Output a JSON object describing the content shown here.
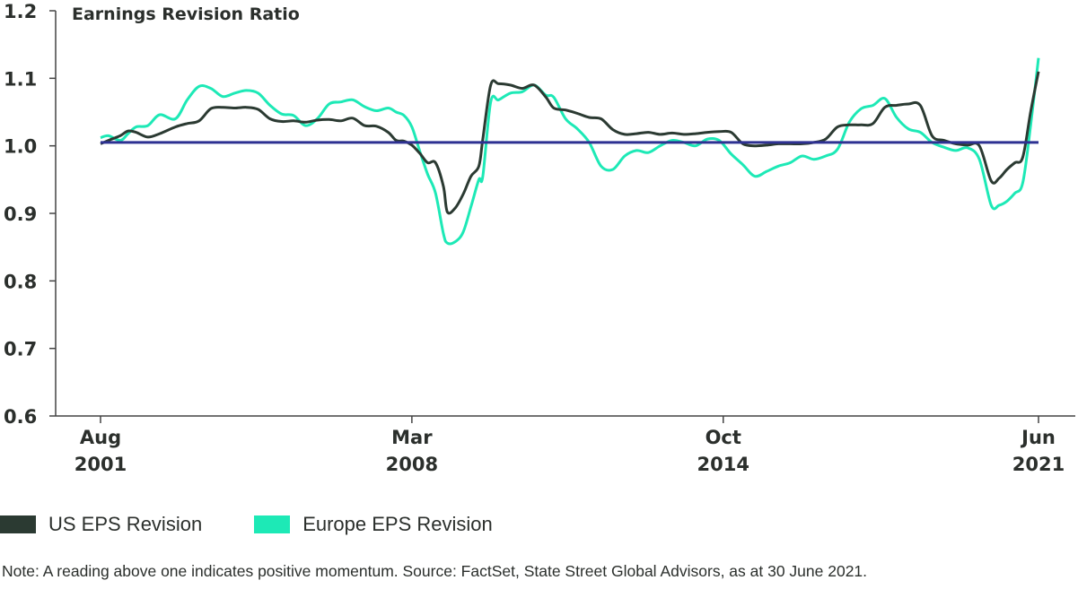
{
  "chart_data": {
    "type": "line",
    "title": "",
    "ylabel": "Earnings Revision Ratio",
    "xlabel": "",
    "ylim": [
      0.6,
      1.2
    ],
    "yticks": [
      "0.6",
      "0.7",
      "0.8",
      "0.9",
      "1.0",
      "1.1",
      "1.2"
    ],
    "xlim": [
      "2001-08",
      "2021-06"
    ],
    "xticks": [
      {
        "date": "2001-08",
        "month": "Aug",
        "year": "2001"
      },
      {
        "date": "2008-03",
        "month": "Mar",
        "year": "2008"
      },
      {
        "date": "2014-10",
        "month": "Oct",
        "year": "2014"
      },
      {
        "date": "2021-06",
        "month": "Jun",
        "year": "2021"
      }
    ],
    "grid": false,
    "legend_position": "bottom-left",
    "reference_line": {
      "y": 1.005,
      "color": "#2e3192"
    },
    "series": [
      {
        "name": "US EPS Revision",
        "color": "#2b3a32",
        "points": [
          [
            "2001-08",
            1.003
          ],
          [
            "2001-10",
            1.008
          ],
          [
            "2002-01",
            1.015
          ],
          [
            "2002-03",
            1.022
          ],
          [
            "2002-05",
            1.02
          ],
          [
            "2002-08",
            1.013
          ],
          [
            "2002-11",
            1.018
          ],
          [
            "2003-03",
            1.028
          ],
          [
            "2003-06",
            1.033
          ],
          [
            "2003-09",
            1.037
          ],
          [
            "2003-12",
            1.055
          ],
          [
            "2004-03",
            1.057
          ],
          [
            "2004-06",
            1.056
          ],
          [
            "2004-09",
            1.057
          ],
          [
            "2004-12",
            1.054
          ],
          [
            "2005-03",
            1.04
          ],
          [
            "2005-06",
            1.036
          ],
          [
            "2005-09",
            1.037
          ],
          [
            "2005-12",
            1.035
          ],
          [
            "2006-03",
            1.038
          ],
          [
            "2006-06",
            1.039
          ],
          [
            "2006-09",
            1.037
          ],
          [
            "2006-12",
            1.041
          ],
          [
            "2007-03",
            1.03
          ],
          [
            "2007-06",
            1.029
          ],
          [
            "2007-09",
            1.02
          ],
          [
            "2007-11",
            1.008
          ],
          [
            "2008-01",
            1.007
          ],
          [
            "2008-03",
            1.001
          ],
          [
            "2008-05",
            0.989
          ],
          [
            "2008-07",
            0.975
          ],
          [
            "2008-09",
            0.975
          ],
          [
            "2008-11",
            0.94
          ],
          [
            "2008-12",
            0.902
          ],
          [
            "2009-02",
            0.908
          ],
          [
            "2009-04",
            0.928
          ],
          [
            "2009-06",
            0.955
          ],
          [
            "2009-08",
            0.97
          ],
          [
            "2009-09",
            1.01
          ],
          [
            "2009-11",
            1.09
          ],
          [
            "2010-01",
            1.092
          ],
          [
            "2010-04",
            1.09
          ],
          [
            "2010-07",
            1.085
          ],
          [
            "2010-10",
            1.09
          ],
          [
            "2011-01",
            1.072
          ],
          [
            "2011-03",
            1.056
          ],
          [
            "2011-06",
            1.053
          ],
          [
            "2011-09",
            1.048
          ],
          [
            "2011-12",
            1.042
          ],
          [
            "2012-03",
            1.04
          ],
          [
            "2012-06",
            1.024
          ],
          [
            "2012-09",
            1.017
          ],
          [
            "2012-12",
            1.018
          ],
          [
            "2013-03",
            1.02
          ],
          [
            "2013-06",
            1.017
          ],
          [
            "2013-09",
            1.019
          ],
          [
            "2013-12",
            1.017
          ],
          [
            "2014-03",
            1.018
          ],
          [
            "2014-06",
            1.02
          ],
          [
            "2014-09",
            1.021
          ],
          [
            "2014-12",
            1.02
          ],
          [
            "2015-03",
            1.003
          ],
          [
            "2015-06",
            1.0
          ],
          [
            "2015-09",
            1.001
          ],
          [
            "2015-12",
            1.003
          ],
          [
            "2016-03",
            1.003
          ],
          [
            "2016-06",
            1.003
          ],
          [
            "2016-09",
            1.005
          ],
          [
            "2016-12",
            1.01
          ],
          [
            "2017-03",
            1.028
          ],
          [
            "2017-06",
            1.031
          ],
          [
            "2017-09",
            1.031
          ],
          [
            "2017-12",
            1.033
          ],
          [
            "2018-03",
            1.057
          ],
          [
            "2018-06",
            1.06
          ],
          [
            "2018-09",
            1.062
          ],
          [
            "2018-12",
            1.06
          ],
          [
            "2019-03",
            1.015
          ],
          [
            "2019-06",
            1.008
          ],
          [
            "2019-09",
            1.003
          ],
          [
            "2019-12",
            1.001
          ],
          [
            "2020-03",
            1.0
          ],
          [
            "2020-06",
            0.948
          ],
          [
            "2020-08",
            0.952
          ],
          [
            "2020-10",
            0.965
          ],
          [
            "2020-12",
            0.975
          ],
          [
            "2021-02",
            0.983
          ],
          [
            "2021-04",
            1.05
          ],
          [
            "2021-06",
            1.11
          ]
        ]
      },
      {
        "name": "Europe EPS Revision",
        "color": "#1de9b6",
        "points": [
          [
            "2001-08",
            1.012
          ],
          [
            "2001-10",
            1.015
          ],
          [
            "2002-01",
            1.008
          ],
          [
            "2002-03",
            1.018
          ],
          [
            "2002-05",
            1.028
          ],
          [
            "2002-08",
            1.03
          ],
          [
            "2002-11",
            1.046
          ],
          [
            "2003-03",
            1.04
          ],
          [
            "2003-06",
            1.068
          ],
          [
            "2003-09",
            1.088
          ],
          [
            "2003-12",
            1.085
          ],
          [
            "2004-03",
            1.073
          ],
          [
            "2004-06",
            1.078
          ],
          [
            "2004-09",
            1.082
          ],
          [
            "2004-12",
            1.078
          ],
          [
            "2005-03",
            1.06
          ],
          [
            "2005-06",
            1.047
          ],
          [
            "2005-09",
            1.045
          ],
          [
            "2005-12",
            1.03
          ],
          [
            "2006-03",
            1.04
          ],
          [
            "2006-06",
            1.062
          ],
          [
            "2006-09",
            1.065
          ],
          [
            "2006-12",
            1.068
          ],
          [
            "2007-03",
            1.058
          ],
          [
            "2007-06",
            1.052
          ],
          [
            "2007-09",
            1.056
          ],
          [
            "2007-11",
            1.05
          ],
          [
            "2008-01",
            1.045
          ],
          [
            "2008-03",
            1.028
          ],
          [
            "2008-05",
            0.992
          ],
          [
            "2008-07",
            0.958
          ],
          [
            "2008-09",
            0.93
          ],
          [
            "2008-11",
            0.87
          ],
          [
            "2008-12",
            0.856
          ],
          [
            "2009-02",
            0.858
          ],
          [
            "2009-04",
            0.872
          ],
          [
            "2009-06",
            0.91
          ],
          [
            "2009-08",
            0.95
          ],
          [
            "2009-09",
            0.955
          ],
          [
            "2009-11",
            1.065
          ],
          [
            "2010-01",
            1.068
          ],
          [
            "2010-04",
            1.078
          ],
          [
            "2010-07",
            1.08
          ],
          [
            "2010-10",
            1.09
          ],
          [
            "2011-01",
            1.075
          ],
          [
            "2011-03",
            1.072
          ],
          [
            "2011-06",
            1.04
          ],
          [
            "2011-09",
            1.025
          ],
          [
            "2011-12",
            1.005
          ],
          [
            "2012-03",
            0.97
          ],
          [
            "2012-06",
            0.965
          ],
          [
            "2012-09",
            0.985
          ],
          [
            "2012-12",
            0.993
          ],
          [
            "2013-03",
            0.99
          ],
          [
            "2013-06",
            1.0
          ],
          [
            "2013-09",
            1.008
          ],
          [
            "2013-12",
            1.005
          ],
          [
            "2014-03",
            1.0
          ],
          [
            "2014-06",
            1.01
          ],
          [
            "2014-09",
            1.008
          ],
          [
            "2014-12",
            0.988
          ],
          [
            "2015-03",
            0.972
          ],
          [
            "2015-06",
            0.955
          ],
          [
            "2015-09",
            0.962
          ],
          [
            "2015-12",
            0.97
          ],
          [
            "2016-03",
            0.975
          ],
          [
            "2016-06",
            0.985
          ],
          [
            "2016-09",
            0.98
          ],
          [
            "2016-12",
            0.985
          ],
          [
            "2017-03",
            0.995
          ],
          [
            "2017-06",
            1.035
          ],
          [
            "2017-09",
            1.055
          ],
          [
            "2017-12",
            1.06
          ],
          [
            "2018-03",
            1.07
          ],
          [
            "2018-06",
            1.042
          ],
          [
            "2018-09",
            1.025
          ],
          [
            "2018-12",
            1.02
          ],
          [
            "2019-03",
            1.005
          ],
          [
            "2019-06",
            0.998
          ],
          [
            "2019-09",
            0.993
          ],
          [
            "2019-12",
            0.997
          ],
          [
            "2020-03",
            0.98
          ],
          [
            "2020-06",
            0.912
          ],
          [
            "2020-08",
            0.912
          ],
          [
            "2020-10",
            0.918
          ],
          [
            "2020-12",
            0.93
          ],
          [
            "2021-02",
            0.945
          ],
          [
            "2021-04",
            1.03
          ],
          [
            "2021-06",
            1.13
          ]
        ]
      }
    ]
  },
  "note": "Note: A reading above one indicates  positive momentum. Source: FactSet, State Street Global Advisors, as at 30 June 2021."
}
